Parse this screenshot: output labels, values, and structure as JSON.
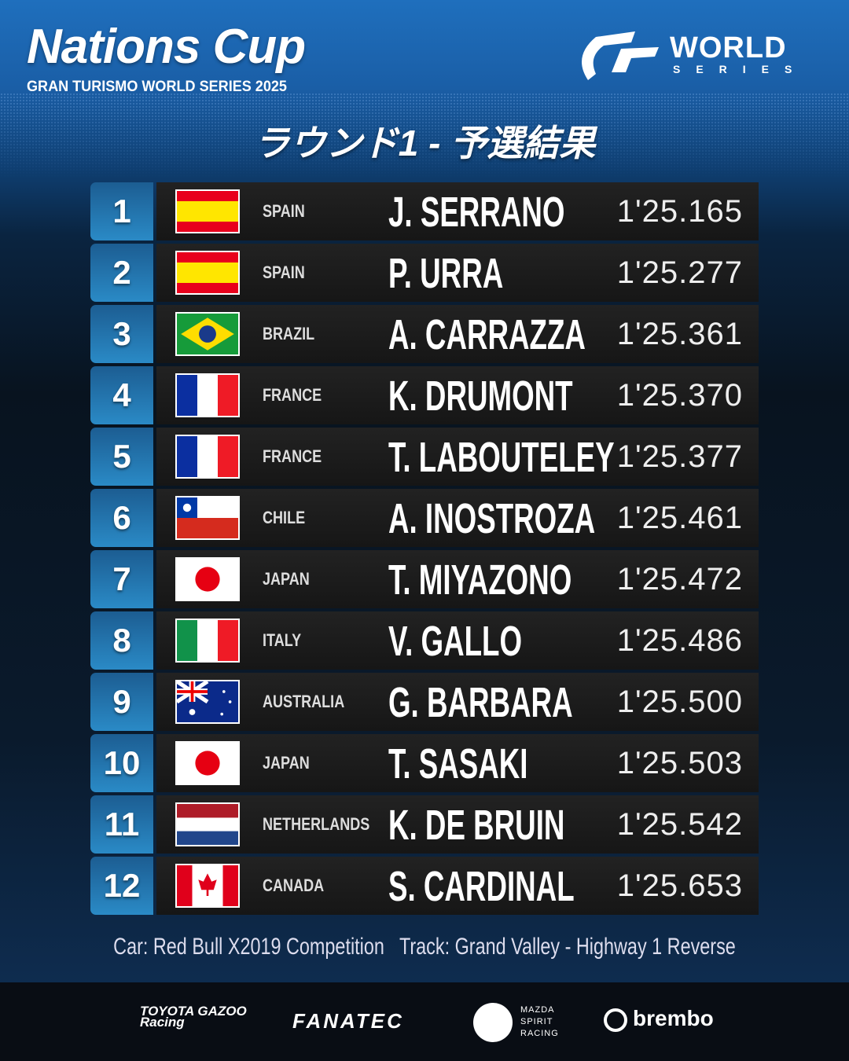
{
  "header": {
    "title": "Nations Cup",
    "subtitle": "GRAN TURISMO WORLD SERIES 2025",
    "logo_text": "WORLD",
    "logo_sub": "SERIES",
    "heading": "ラウンド1 - 予選結果"
  },
  "results": [
    {
      "pos": "1",
      "flag": "es",
      "country": "SPAIN",
      "name": "J. SERRANO",
      "time": "1'25.165"
    },
    {
      "pos": "2",
      "flag": "es",
      "country": "SPAIN",
      "name": "P. URRA",
      "time": "1'25.277"
    },
    {
      "pos": "3",
      "flag": "br",
      "country": "BRAZIL",
      "name": "A. CARRAZZA",
      "time": "1'25.361"
    },
    {
      "pos": "4",
      "flag": "fr",
      "country": "FRANCE",
      "name": "K. DRUMONT",
      "time": "1'25.370"
    },
    {
      "pos": "5",
      "flag": "fr",
      "country": "FRANCE",
      "name": "T. LABOUTELEY",
      "time": "1'25.377"
    },
    {
      "pos": "6",
      "flag": "cl",
      "country": "CHILE",
      "name": "A. INOSTROZA",
      "time": "1'25.461"
    },
    {
      "pos": "7",
      "flag": "jp",
      "country": "JAPAN",
      "name": "T. MIYAZONO",
      "time": "1'25.472"
    },
    {
      "pos": "8",
      "flag": "it",
      "country": "ITALY",
      "name": "V. GALLO",
      "time": "1'25.486"
    },
    {
      "pos": "9",
      "flag": "au",
      "country": "AUSTRALIA",
      "name": "G. BARBARA",
      "time": "1'25.500"
    },
    {
      "pos": "10",
      "flag": "jp",
      "country": "JAPAN",
      "name": "T. SASAKI",
      "time": "1'25.503"
    },
    {
      "pos": "11",
      "flag": "nl",
      "country": "NETHERLANDS",
      "name": "K. DE BRUIN",
      "time": "1'25.542"
    },
    {
      "pos": "12",
      "flag": "ca",
      "country": "CANADA",
      "name": "S. CARDINAL",
      "time": "1'25.653"
    }
  ],
  "info": "Car: Red Bull X2019 Competition   Track: Grand Valley - Highway 1 Reverse",
  "sponsors": {
    "toyota": "TOYOTA GAZOO Racing",
    "fanatec": "FANATEC",
    "mazda": "MAZDA SPIRIT RACING",
    "brembo": "brembo"
  },
  "colors": {
    "position_box": "#2a8ac6",
    "row_bg": "#1c1c1c",
    "header_blue": "#1f6fbd"
  }
}
